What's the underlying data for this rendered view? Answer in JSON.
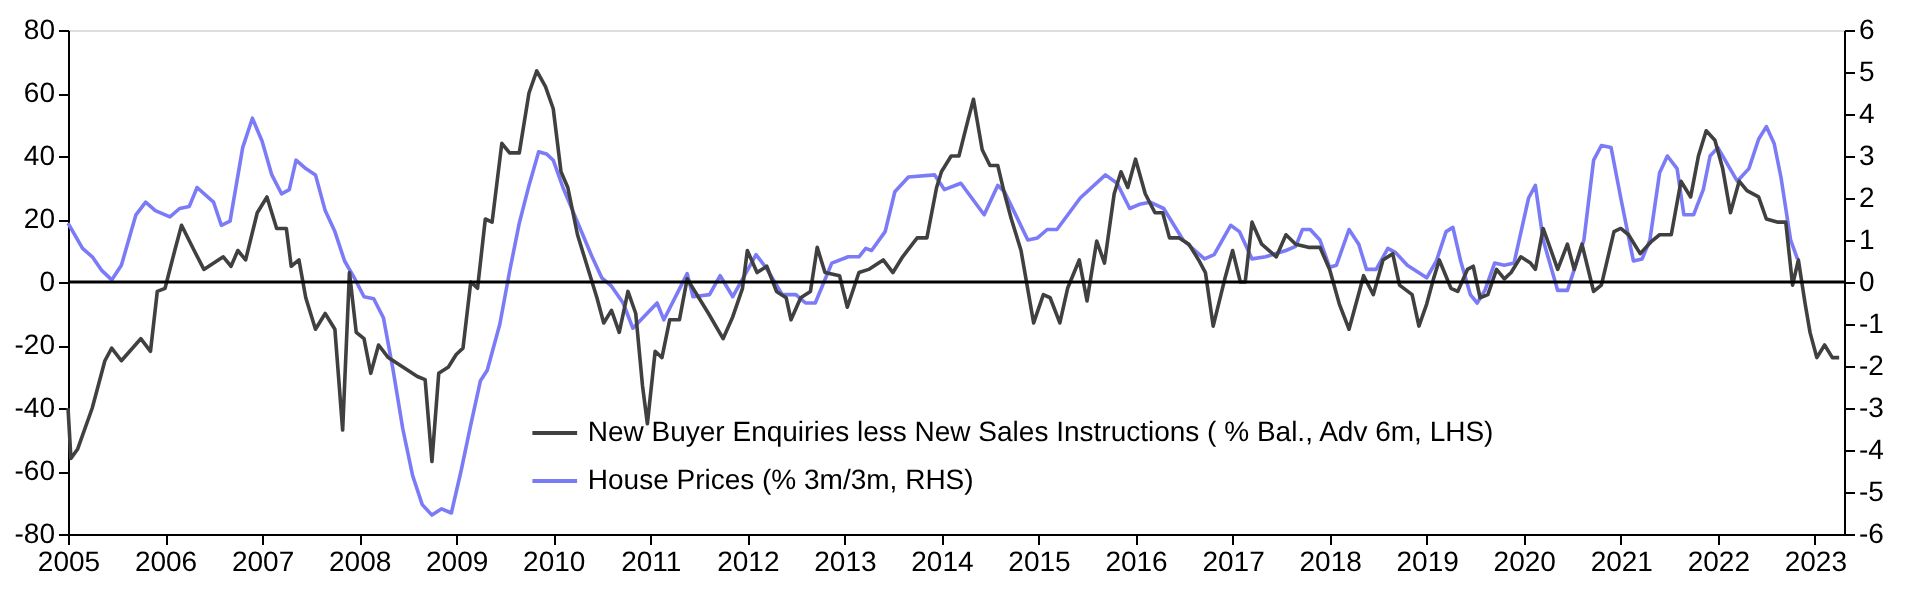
{
  "chart_data": {
    "type": "line",
    "xlim": [
      2005,
      2023.3
    ],
    "xticks": [
      2005,
      2006,
      2007,
      2008,
      2009,
      2010,
      2011,
      2012,
      2013,
      2014,
      2015,
      2016,
      2017,
      2018,
      2019,
      2020,
      2021,
      2022,
      2023
    ],
    "ylim": [
      -80,
      80
    ],
    "yticks": [
      -80,
      -60,
      -40,
      -20,
      0,
      20,
      40,
      60,
      80
    ],
    "y2lim": [
      -6,
      6
    ],
    "y2ticks": [
      -6,
      -5,
      -4,
      -3,
      -2,
      -1,
      0,
      1,
      2,
      3,
      4,
      5,
      6
    ],
    "grid": false,
    "legend": "bottom",
    "marker": "none",
    "line_style": "solid",
    "ref_lines": [
      {
        "axis": "y",
        "value": 0,
        "color": "#000000"
      }
    ],
    "series": [
      {
        "name": "New Buyer Enquiries less New Sales Instructions ( % Bal., Adv 6m, LHS)",
        "color": "#404040",
        "axis": "y",
        "x": [
          2005.0,
          2005.03,
          2005.1,
          2005.25,
          2005.38,
          2005.45,
          2005.55,
          2005.75,
          2005.85,
          2005.92,
          2006.0,
          2006.1,
          2006.17,
          2006.3,
          2006.4,
          2006.6,
          2006.68,
          2006.75,
          2006.83,
          2006.95,
          2007.05,
          2007.15,
          2007.25,
          2007.3,
          2007.38,
          2007.45,
          2007.55,
          2007.65,
          2007.75,
          2007.83,
          2007.9,
          2007.97,
          2008.05,
          2008.12,
          2008.2,
          2008.3,
          2008.45,
          2008.6,
          2008.68,
          2008.75,
          2008.82,
          2008.92,
          2009.0,
          2009.07,
          2009.15,
          2009.22,
          2009.3,
          2009.37,
          2009.47,
          2009.55,
          2009.65,
          2009.75,
          2009.83,
          2009.92,
          2010.0,
          2010.08,
          2010.15,
          2010.25,
          2010.35,
          2010.45,
          2010.52,
          2010.6,
          2010.68,
          2010.77,
          2010.85,
          2010.92,
          2010.97,
          2011.05,
          2011.12,
          2011.2,
          2011.3,
          2011.38,
          2011.5,
          2011.6,
          2011.75,
          2011.85,
          2011.95,
          2012.0,
          2012.1,
          2012.2,
          2012.3,
          2012.4,
          2012.45,
          2012.55,
          2012.65,
          2012.72,
          2012.8,
          2012.95,
          2013.03,
          2013.15,
          2013.25,
          2013.4,
          2013.5,
          2013.6,
          2013.75,
          2013.85,
          2013.95,
          2014.0,
          2014.1,
          2014.18,
          2014.27,
          2014.33,
          2014.42,
          2014.5,
          2014.58,
          2014.65,
          2014.72,
          2014.82,
          2014.95,
          2015.05,
          2015.12,
          2015.22,
          2015.3,
          2015.42,
          2015.5,
          2015.6,
          2015.68,
          2015.78,
          2015.85,
          2015.92,
          2016.0,
          2016.1,
          2016.2,
          2016.28,
          2016.35,
          2016.45,
          2016.55,
          2016.65,
          2016.72,
          2016.8,
          2016.92,
          2017.0,
          2017.08,
          2017.13,
          2017.2,
          2017.3,
          2017.45,
          2017.55,
          2017.65,
          2017.78,
          2017.9,
          2018.0,
          2018.1,
          2018.2,
          2018.35,
          2018.45,
          2018.55,
          2018.65,
          2018.72,
          2018.85,
          2018.92,
          2019.0,
          2019.07,
          2019.13,
          2019.25,
          2019.32,
          2019.42,
          2019.48,
          2019.55,
          2019.63,
          2019.72,
          2019.8,
          2019.87,
          2019.97,
          2020.07,
          2020.12,
          2020.2,
          2020.27,
          2020.35,
          2020.45,
          2020.52,
          2020.6,
          2020.72,
          2020.8,
          2020.93,
          2021.0,
          2021.08,
          2021.2,
          2021.32,
          2021.4,
          2021.52,
          2021.62,
          2021.72,
          2021.8,
          2021.88,
          2021.97,
          2022.05,
          2022.13,
          2022.22,
          2022.3,
          2022.42,
          2022.5,
          2022.62,
          2022.7,
          2022.77,
          2022.83,
          2022.9,
          2022.95,
          2023.02,
          2023.1,
          2023.18,
          2023.25
        ],
        "values": [
          -40,
          -56,
          -53,
          -40,
          -25,
          -21,
          -25,
          -18,
          -22,
          -3,
          -2,
          10,
          18,
          10,
          4,
          8,
          5,
          10,
          7,
          22,
          27,
          17,
          17,
          5,
          7,
          -5,
          -15,
          -10,
          -15,
          -47,
          3,
          -16,
          -18,
          -29,
          -20,
          -24,
          -27,
          -30,
          -31,
          -57,
          -29,
          -27,
          -23,
          -21,
          0,
          -2,
          20,
          19,
          44,
          41,
          41,
          60,
          67,
          62,
          55,
          35,
          30,
          15,
          5,
          -5,
          -13,
          -9,
          -16,
          -3,
          -10,
          -33,
          -45,
          -22,
          -24,
          -12,
          -12,
          1,
          -5,
          -10,
          -18,
          -11,
          -2,
          10,
          3,
          5,
          -3,
          -5,
          -12,
          -5,
          -3,
          11,
          3,
          2,
          -8,
          3,
          4,
          7,
          3,
          8,
          14,
          14,
          30,
          35,
          40,
          40,
          51,
          58,
          42,
          37,
          37,
          28,
          20,
          10,
          -13,
          -4,
          -5,
          -13,
          -2,
          7,
          -6,
          13,
          6,
          28,
          35,
          30,
          39,
          28,
          22,
          22,
          14,
          14,
          12,
          7,
          3,
          -14,
          1,
          10,
          0,
          0,
          19,
          12,
          8,
          15,
          12,
          11,
          11,
          4,
          -7,
          -15,
          2,
          -4,
          7,
          9,
          -1,
          -4,
          -14,
          -7,
          1,
          7,
          -2,
          -3,
          4,
          5,
          -5,
          -4,
          4,
          1,
          3,
          8,
          6,
          4,
          17,
          11,
          4,
          12,
          4,
          12,
          -3,
          -1,
          16,
          17,
          15,
          9,
          13,
          15,
          15,
          32,
          27,
          40,
          48,
          45,
          36,
          22,
          32,
          29,
          27,
          20,
          19,
          19,
          -1,
          7,
          -7,
          -16,
          -24,
          -20,
          -24,
          -24
        ]
      },
      {
        "name": "House Prices (% 3m/3m, RHS)",
        "color": "#7b7bf7",
        "axis": "y2",
        "x": [
          2005.0,
          2005.15,
          2005.25,
          2005.35,
          2005.45,
          2005.55,
          2005.7,
          2005.8,
          2005.9,
          2006.05,
          2006.15,
          2006.25,
          2006.33,
          2006.5,
          2006.58,
          2006.67,
          2006.8,
          2006.9,
          2007.0,
          2007.1,
          2007.2,
          2007.28,
          2007.35,
          2007.45,
          2007.55,
          2007.65,
          2007.75,
          2007.85,
          2007.95,
          2008.05,
          2008.15,
          2008.25,
          2008.35,
          2008.45,
          2008.55,
          2008.65,
          2008.75,
          2008.85,
          2008.95,
          2009.05,
          2009.15,
          2009.25,
          2009.32,
          2009.45,
          2009.55,
          2009.65,
          2009.75,
          2009.85,
          2009.93,
          2010.0,
          2010.1,
          2010.2,
          2010.3,
          2010.4,
          2010.5,
          2010.6,
          2010.72,
          2010.82,
          2011.07,
          2011.14,
          2011.38,
          2011.44,
          2011.61,
          2011.72,
          2011.85,
          2012.09,
          2012.19,
          2012.36,
          2012.5,
          2012.6,
          2012.7,
          2012.87,
          2013.04,
          2013.15,
          2013.22,
          2013.28,
          2013.42,
          2013.52,
          2013.66,
          2013.93,
          2014.03,
          2014.2,
          2014.44,
          2014.58,
          2014.65,
          2014.89,
          2014.99,
          2015.09,
          2015.19,
          2015.43,
          2015.69,
          2015.81,
          2015.94,
          2016.04,
          2016.15,
          2016.29,
          2016.49,
          2016.71,
          2016.81,
          2016.98,
          2017.07,
          2017.2,
          2017.34,
          2017.55,
          2017.65,
          2017.72,
          2017.8,
          2017.9,
          2018.0,
          2018.07,
          2018.2,
          2018.3,
          2018.38,
          2018.48,
          2018.6,
          2018.68,
          2018.8,
          2019.0,
          2019.1,
          2019.2,
          2019.27,
          2019.35,
          2019.45,
          2019.52,
          2019.6,
          2019.7,
          2019.8,
          2019.9,
          2020.05,
          2020.12,
          2020.2,
          2020.35,
          2020.45,
          2020.62,
          2020.72,
          2020.8,
          2020.9,
          2021.0,
          2021.13,
          2021.22,
          2021.3,
          2021.4,
          2021.48,
          2021.58,
          2021.65,
          2021.75,
          2021.85,
          2021.92,
          2022.0,
          2022.1,
          2022.2,
          2022.32,
          2022.42,
          2022.5,
          2022.58,
          2022.65,
          2022.75,
          2022.82
        ],
        "values": [
          1.4,
          0.8,
          0.6,
          0.27,
          0.05,
          0.4,
          1.6,
          1.9,
          1.7,
          1.55,
          1.75,
          1.8,
          2.25,
          1.9,
          1.35,
          1.45,
          3.2,
          3.9,
          3.35,
          2.55,
          2.1,
          2.2,
          2.9,
          2.7,
          2.55,
          1.7,
          1.2,
          0.5,
          0.1,
          -0.35,
          -0.4,
          -0.85,
          -2.1,
          -3.5,
          -4.6,
          -5.3,
          -5.55,
          -5.4,
          -5.5,
          -4.5,
          -3.4,
          -2.35,
          -2.1,
          -1.0,
          0.25,
          1.4,
          2.3,
          3.1,
          3.05,
          2.9,
          2.25,
          1.7,
          1.15,
          0.6,
          0.1,
          -0.1,
          -0.5,
          -1.1,
          -0.5,
          -0.9,
          0.2,
          -0.35,
          -0.3,
          0.15,
          -0.35,
          0.65,
          0.35,
          -0.3,
          -0.3,
          -0.5,
          -0.5,
          0.45,
          0.6,
          0.6,
          0.8,
          0.75,
          1.2,
          2.15,
          2.5,
          2.55,
          2.2,
          2.35,
          1.6,
          2.3,
          2.15,
          1.0,
          1.05,
          1.25,
          1.25,
          2.0,
          2.55,
          2.35,
          1.75,
          1.85,
          1.9,
          1.75,
          1.0,
          0.55,
          0.65,
          1.35,
          1.2,
          0.55,
          0.6,
          0.75,
          0.85,
          1.25,
          1.25,
          1.0,
          0.35,
          0.4,
          1.25,
          0.9,
          0.3,
          0.3,
          0.8,
          0.7,
          0.4,
          0.1,
          0.5,
          1.2,
          1.3,
          0.5,
          -0.3,
          -0.5,
          -0.2,
          0.45,
          0.4,
          0.45,
          2.0,
          2.3,
          1.0,
          -0.2,
          -0.2,
          1.0,
          2.9,
          3.25,
          3.2,
          2.0,
          0.5,
          0.55,
          1.0,
          2.6,
          3.0,
          2.7,
          1.6,
          1.6,
          2.2,
          3.0,
          3.2,
          2.8,
          2.4,
          2.7,
          3.4,
          3.7,
          3.3,
          2.5,
          1.0,
          0.55
        ]
      }
    ]
  }
}
